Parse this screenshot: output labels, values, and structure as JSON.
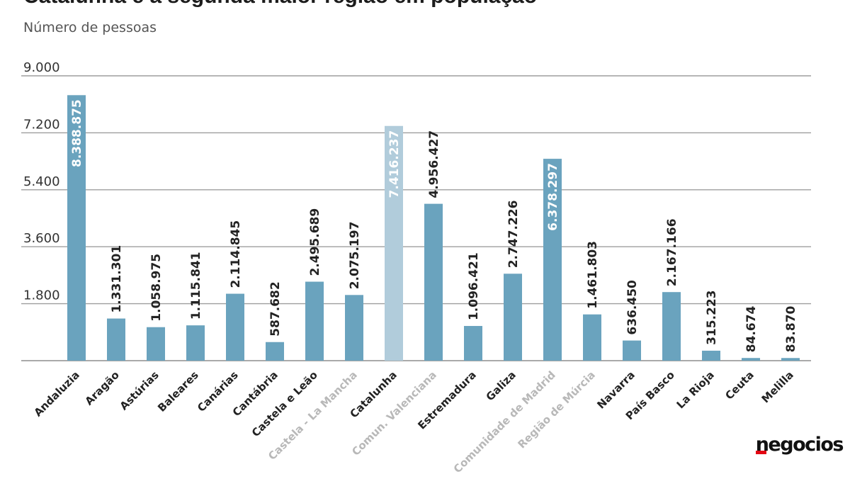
{
  "title": "Catalunha é a segunda maior região em população",
  "subtitle": "Número de pessoas",
  "logo": "negocios",
  "colors": {
    "bar": "#6aa3be",
    "highlight_bar": "#b1ccdb",
    "grid": "#9e9e9e",
    "axis_text": "#333333",
    "label_text": "#222222",
    "muted_label": "#b8b8b8",
    "logo_accent": "#e30613"
  },
  "chart_data": {
    "type": "bar",
    "title": "Catalunha é a segunda maior região em população",
    "subtitle": "Número de pessoas",
    "xlabel": "",
    "ylabel": "",
    "ylim": [
      0,
      9000
    ],
    "yticks": [
      0,
      1800,
      3600,
      5400,
      7200,
      9000
    ],
    "ytick_labels": [
      "",
      "1.800",
      "3.600",
      "5.400",
      "7.200",
      "9.000"
    ],
    "grid": true,
    "categories": [
      "Andaluzia",
      "Aragão",
      "Astúrias",
      "Baleares",
      "Canárias",
      "Cantábria",
      "Castela e Leão",
      "Castela - La Mancha",
      "Catalunha",
      "Comun. Valenciana",
      "Estremadura",
      "Galiza",
      "Comunidade de Madrid",
      "Região de Múrcia",
      "Navarra",
      "País Basco",
      "La Rioja",
      "Ceuta",
      "Melilla"
    ],
    "values": [
      8388.875,
      1331.301,
      1058.975,
      1115.841,
      2114.845,
      587.682,
      2495.689,
      2075.197,
      7416.237,
      4956.427,
      1096.421,
      2747.226,
      6378.297,
      1461.803,
      636.45,
      2167.166,
      315.223,
      84.674,
      83.87
    ],
    "data_labels": [
      "8.388.875",
      "1.331.301",
      "1.058.975",
      "1.115.841",
      "2.114.845",
      "587.682",
      "2.495.689",
      "2.075.197",
      "7.416.237",
      "4.956.427",
      "1.096.421",
      "2.747.226",
      "6.378.297",
      "1.461.803",
      "636.450",
      "2.167.166",
      "315.223",
      "84.674",
      "83.870"
    ],
    "labels_inside_bar": [
      true,
      false,
      false,
      false,
      false,
      false,
      false,
      false,
      true,
      false,
      false,
      false,
      true,
      false,
      false,
      false,
      false,
      false,
      false
    ],
    "highlighted": [
      "Catalunha"
    ],
    "muted_category_labels": [
      "Castela - La Mancha",
      "Comun. Valenciana",
      "Comunidade de Madrid",
      "Região de Múrcia"
    ]
  }
}
